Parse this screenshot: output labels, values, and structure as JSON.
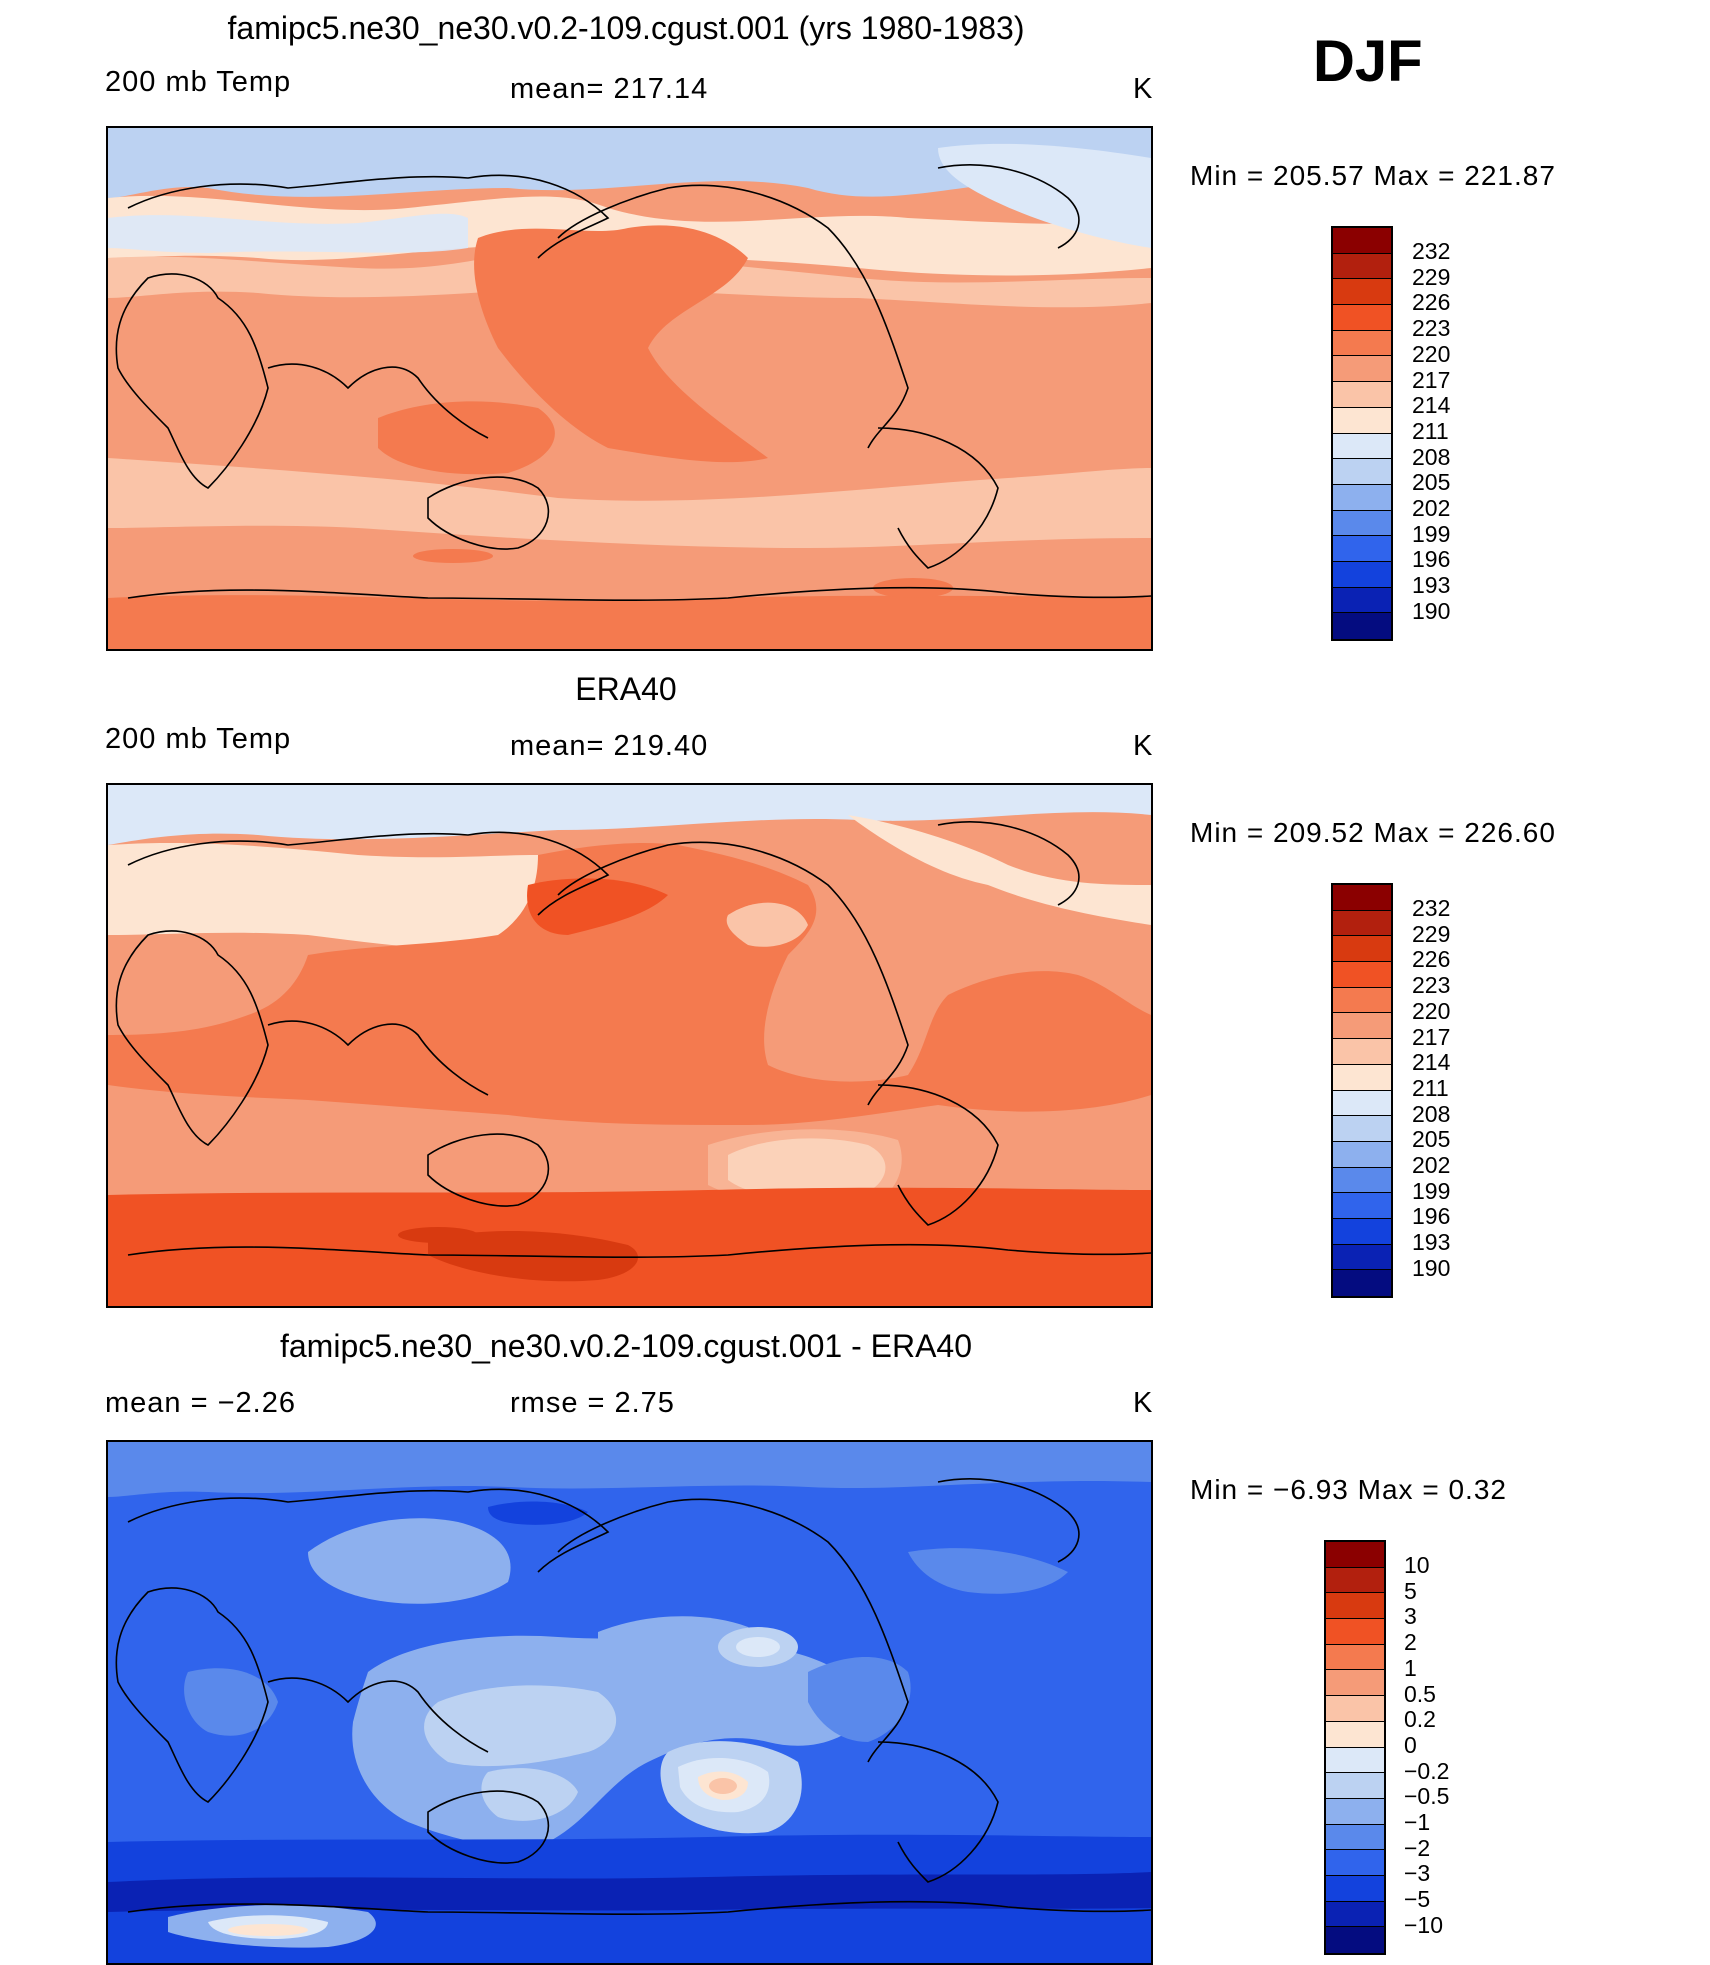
{
  "season": "DJF",
  "panels": [
    {
      "title": "famipc5.ne30_ne30.v0.2-109.cgust.001 (yrs 1980-1983)",
      "left_label": "200 mb Temp",
      "center_label": "mean= 217.14",
      "units": "K",
      "minmax": "Min = 205.57 Max = 221.87",
      "colorbar": {
        "levels": [
          "232",
          "229",
          "226",
          "223",
          "220",
          "217",
          "214",
          "211",
          "208",
          "205",
          "202",
          "199",
          "196",
          "193",
          "190"
        ],
        "colors": [
          "#8b0000",
          "#b2200e",
          "#d83a10",
          "#f05224",
          "#f47a4f",
          "#f59b78",
          "#fac4a8",
          "#fde5d2",
          "#dce8f8",
          "#bcd2f2",
          "#8db0ee",
          "#5a89eb",
          "#3064ec",
          "#1342dd",
          "#0a22b4",
          "#040c80"
        ]
      }
    },
    {
      "title": "ERA40",
      "left_label": "200 mb Temp",
      "center_label": "mean= 219.40",
      "units": "K",
      "minmax": "Min = 209.52 Max = 226.60",
      "colorbar": {
        "levels": [
          "232",
          "229",
          "226",
          "223",
          "220",
          "217",
          "214",
          "211",
          "208",
          "205",
          "202",
          "199",
          "196",
          "193",
          "190"
        ],
        "colors": [
          "#8b0000",
          "#b2200e",
          "#d83a10",
          "#f05224",
          "#f47a4f",
          "#f59b78",
          "#fac4a8",
          "#fde5d2",
          "#dce8f8",
          "#bcd2f2",
          "#8db0ee",
          "#5a89eb",
          "#3064ec",
          "#1342dd",
          "#0a22b4",
          "#040c80"
        ]
      }
    },
    {
      "title": "famipc5.ne30_ne30.v0.2-109.cgust.001 - ERA40",
      "left_label": "mean = −2.26",
      "center_label": "rmse = 2.75",
      "units": "K",
      "minmax": "Min = −6.93 Max = 0.32",
      "colorbar": {
        "levels": [
          "10",
          "5",
          "3",
          "2",
          "1",
          "0.5",
          "0.2",
          "0",
          "−0.2",
          "−0.5",
          "−1",
          "−2",
          "−3",
          "−5",
          "−10"
        ],
        "colors": [
          "#8b0000",
          "#b2200e",
          "#d83a10",
          "#f05224",
          "#f47a4f",
          "#f59b78",
          "#fac4a8",
          "#fde5d2",
          "#dce8f8",
          "#bcd2f2",
          "#8db0ee",
          "#5a89eb",
          "#3064ec",
          "#1342dd",
          "#0a22b4",
          "#040c80"
        ]
      }
    }
  ]
}
